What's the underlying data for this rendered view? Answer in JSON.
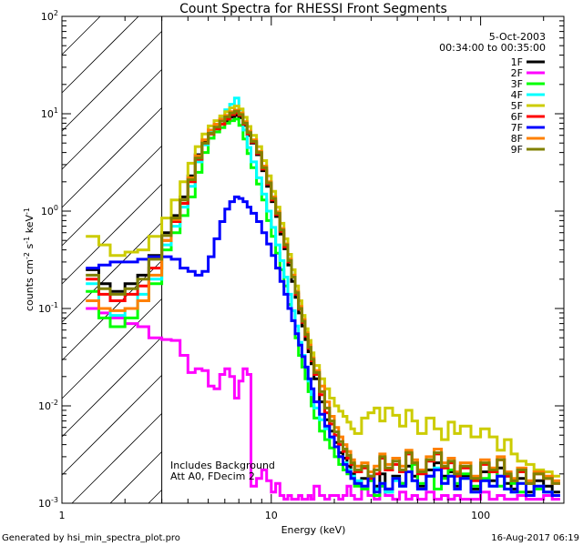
{
  "chart_data": {
    "type": "line",
    "title": "Count Spectra for RHESSI Front Segments",
    "xlabel": "Energy (keV)",
    "ylabel": "counts cm-2 s-1 keV-1",
    "ylabel_parts": {
      "base": "counts cm",
      "exp1": "-2",
      "mid1": " s",
      "exp2": "-1",
      "mid2": " keV",
      "exp3": "-1"
    },
    "x_scale": "log",
    "y_scale": "log",
    "xlim": [
      1,
      250
    ],
    "ylim": [
      0.001,
      100
    ],
    "x_ticks": [
      {
        "value": 1,
        "label": "1"
      },
      {
        "value": 10,
        "label": "10"
      },
      {
        "value": 100,
        "label": "100"
      }
    ],
    "y_ticks": [
      {
        "value": 100,
        "base": "10",
        "exp": "2"
      },
      {
        "value": 10,
        "base": "10",
        "exp": "1"
      },
      {
        "value": 1,
        "base": "10",
        "exp": "0"
      },
      {
        "value": 0.1,
        "base": "10",
        "exp": "-1"
      },
      {
        "value": 0.01,
        "base": "10",
        "exp": "-2"
      },
      {
        "value": 0.001,
        "base": "10",
        "exp": "-3"
      }
    ],
    "excluded_region_keV": [
      1,
      3
    ],
    "annotations": {
      "date": "5-Oct-2003",
      "time_range": "00:34:00 to 00:35:00",
      "note_line1": "Includes Background",
      "note_line2": "Att A0, FDecim 2"
    },
    "footer": {
      "left": "Generated by hsi_min_spectra_plot.pro",
      "right": "16-Aug-2017 06:19"
    },
    "bin_edges": [
      1.3,
      1.5,
      1.7,
      2.0,
      2.3,
      2.6,
      3.0,
      3.33,
      3.67,
      4.0,
      4.33,
      4.67,
      5.0,
      5.33,
      5.67,
      6.0,
      6.33,
      6.67,
      7.0,
      7.33,
      7.67,
      8.0,
      8.5,
      9.0,
      9.5,
      10.0,
      10.5,
      11.0,
      11.5,
      12.0,
      12.5,
      13.0,
      13.5,
      14.0,
      14.5,
      15.0,
      15.5,
      16.0,
      17.0,
      18.0,
      19.0,
      20.0,
      21.0,
      22.0,
      23.0,
      24.0,
      25.0,
      27.0,
      29.0,
      31.0,
      33.0,
      35.0,
      38.0,
      41.0,
      44.0,
      47.0,
      50.0,
      55.0,
      60.0,
      65.0,
      70.0,
      75.0,
      80.0,
      90.0,
      100.0,
      110.0,
      120.0,
      130.0,
      140.0,
      150.0,
      165.0,
      180.0,
      200.0,
      220.0,
      240.0
    ],
    "series": [
      {
        "name": "1F",
        "color": "#000000",
        "values": [
          0.25,
          0.18,
          0.15,
          0.18,
          0.22,
          0.35,
          0.6,
          0.9,
          1.4,
          2.3,
          3.8,
          5.2,
          6.3,
          7.0,
          7.8,
          8.3,
          9.2,
          9.6,
          9.1,
          7.6,
          6.0,
          5.0,
          3.8,
          2.6,
          1.8,
          1.25,
          0.88,
          0.58,
          0.41,
          0.28,
          0.19,
          0.13,
          0.09,
          0.066,
          0.048,
          0.036,
          0.027,
          0.019,
          0.011,
          0.0072,
          0.0055,
          0.0042,
          0.0033,
          0.0029,
          0.0024,
          0.002,
          0.0016,
          0.0018,
          0.0012,
          0.0015,
          0.002,
          0.0014,
          0.0019,
          0.0016,
          0.0024,
          0.0019,
          0.0015,
          0.0022,
          0.0026,
          0.0019,
          0.0021,
          0.0015,
          0.0019,
          0.0014,
          0.0021,
          0.0017,
          0.0023,
          0.0016,
          0.0014,
          0.0018,
          0.0013,
          0.0017,
          0.0015,
          0.0013
        ]
      },
      {
        "name": "2F",
        "color": "#ff00ff",
        "values": [
          0.1,
          0.09,
          0.08,
          0.07,
          0.065,
          0.05,
          0.048,
          0.047,
          0.033,
          0.022,
          0.024,
          0.023,
          0.016,
          0.015,
          0.021,
          0.024,
          0.02,
          0.012,
          0.018,
          0.024,
          0.021,
          0.0015,
          0.0018,
          0.0022,
          0.0017,
          0.0013,
          0.0016,
          0.0012,
          0.0011,
          0.0012,
          0.0011,
          0.0011,
          0.0012,
          0.0011,
          0.0011,
          0.0012,
          0.0011,
          0.0015,
          0.0012,
          0.0011,
          0.0012,
          0.0012,
          0.0011,
          0.0012,
          0.0015,
          0.0012,
          0.0011,
          0.0015,
          0.0012,
          0.0011,
          0.0015,
          0.0012,
          0.0011,
          0.0013,
          0.0011,
          0.0012,
          0.0011,
          0.0013,
          0.0011,
          0.0012,
          0.0011,
          0.0012,
          0.0011,
          0.0011,
          0.0013,
          0.0011,
          0.0012,
          0.0011,
          0.0011,
          0.0012,
          0.0011,
          0.0011,
          0.0012,
          0.0011
        ]
      },
      {
        "name": "3F",
        "color": "#00ff00",
        "values": [
          0.15,
          0.08,
          0.065,
          0.08,
          0.12,
          0.18,
          0.4,
          0.6,
          0.9,
          1.4,
          2.5,
          4.0,
          5.6,
          6.5,
          7.2,
          8.0,
          8.5,
          8.8,
          7.6,
          5.5,
          3.9,
          2.8,
          1.9,
          1.3,
          0.8,
          0.55,
          0.37,
          0.25,
          0.17,
          0.11,
          0.075,
          0.05,
          0.033,
          0.025,
          0.019,
          0.014,
          0.01,
          0.0075,
          0.0055,
          0.0045,
          0.0037,
          0.003,
          0.0025,
          0.0022,
          0.002,
          0.0018,
          0.0015,
          0.0014,
          0.0017,
          0.0012,
          0.0015,
          0.0013,
          0.0018,
          0.0016,
          0.0021,
          0.0025,
          0.0016,
          0.0019,
          0.0014,
          0.0018,
          0.0022,
          0.0016,
          0.002,
          0.0015,
          0.0018,
          0.0022,
          0.0015,
          0.0019,
          0.0016,
          0.0013,
          0.0016,
          0.0014,
          0.0013,
          0.0012
        ]
      },
      {
        "name": "4F",
        "color": "#00ffff",
        "values": [
          0.18,
          0.1,
          0.085,
          0.1,
          0.14,
          0.2,
          0.45,
          0.7,
          1.1,
          1.8,
          3.2,
          4.8,
          6.5,
          7.8,
          9.0,
          11.0,
          12.5,
          14.5,
          11.0,
          6.8,
          4.5,
          3.2,
          2.2,
          1.5,
          1.0,
          0.68,
          0.45,
          0.31,
          0.21,
          0.14,
          0.095,
          0.066,
          0.045,
          0.033,
          0.025,
          0.018,
          0.013,
          0.0095,
          0.0072,
          0.0058,
          0.0047,
          0.0038,
          0.003,
          0.0026,
          0.0022,
          0.0019,
          0.0017,
          0.0015,
          0.0019,
          0.0014,
          0.0016,
          0.0013,
          0.0017,
          0.0015,
          0.0021,
          0.0017,
          0.0014,
          0.0019,
          0.0023,
          0.0016,
          0.0019,
          0.0014,
          0.0018,
          0.0013,
          0.0017,
          0.0015,
          0.0019,
          0.0014,
          0.0013,
          0.0016,
          0.0012,
          0.0015,
          0.0013,
          0.0012
        ]
      },
      {
        "name": "5F",
        "color": "#cccc00",
        "values": [
          0.55,
          0.45,
          0.35,
          0.38,
          0.4,
          0.55,
          0.85,
          1.3,
          2.0,
          3.1,
          4.6,
          6.2,
          7.5,
          8.5,
          9.5,
          10.5,
          11.5,
          12.0,
          11.2,
          9.2,
          7.4,
          6.0,
          4.6,
          3.3,
          2.3,
          1.6,
          1.1,
          0.75,
          0.52,
          0.36,
          0.25,
          0.17,
          0.12,
          0.085,
          0.062,
          0.047,
          0.035,
          0.026,
          0.019,
          0.015,
          0.012,
          0.01,
          0.0088,
          0.0078,
          0.0068,
          0.0058,
          0.0052,
          0.0075,
          0.0085,
          0.0095,
          0.007,
          0.0095,
          0.008,
          0.0062,
          0.009,
          0.007,
          0.0052,
          0.0075,
          0.0058,
          0.0045,
          0.0068,
          0.0052,
          0.0062,
          0.0048,
          0.0058,
          0.0048,
          0.0035,
          0.0045,
          0.0032,
          0.0027,
          0.0025,
          0.0022,
          0.0021,
          0.0019
        ]
      },
      {
        "name": "6F",
        "color": "#ff0000",
        "values": [
          0.2,
          0.14,
          0.12,
          0.14,
          0.17,
          0.26,
          0.5,
          0.78,
          1.2,
          2.0,
          3.4,
          5.0,
          6.2,
          7.0,
          7.8,
          8.8,
          9.8,
          10.2,
          9.6,
          7.8,
          6.2,
          5.1,
          3.9,
          2.7,
          1.9,
          1.3,
          0.92,
          0.62,
          0.43,
          0.3,
          0.21,
          0.14,
          0.098,
          0.072,
          0.052,
          0.039,
          0.029,
          0.021,
          0.013,
          0.0085,
          0.0065,
          0.005,
          0.004,
          0.0034,
          0.0029,
          0.0025,
          0.0021,
          0.0023,
          0.0018,
          0.002,
          0.0029,
          0.0022,
          0.0025,
          0.0021,
          0.0032,
          0.0026,
          0.002,
          0.0027,
          0.0032,
          0.0023,
          0.0026,
          0.0019,
          0.0023,
          0.0017,
          0.0025,
          0.0021,
          0.0028,
          0.0019,
          0.0017,
          0.0021,
          0.0016,
          0.002,
          0.0018,
          0.0016
        ]
      },
      {
        "name": "7F",
        "color": "#0000ff",
        "values": [
          0.26,
          0.28,
          0.3,
          0.3,
          0.32,
          0.34,
          0.34,
          0.32,
          0.26,
          0.24,
          0.22,
          0.24,
          0.34,
          0.52,
          0.78,
          1.05,
          1.25,
          1.4,
          1.35,
          1.25,
          1.1,
          0.95,
          0.78,
          0.6,
          0.46,
          0.35,
          0.26,
          0.19,
          0.14,
          0.1,
          0.075,
          0.055,
          0.042,
          0.032,
          0.025,
          0.019,
          0.015,
          0.011,
          0.0082,
          0.0062,
          0.0048,
          0.0038,
          0.003,
          0.0025,
          0.0021,
          0.0018,
          0.0016,
          0.0015,
          0.0019,
          0.0013,
          0.0016,
          0.0014,
          0.0018,
          0.0015,
          0.0021,
          0.0017,
          0.0014,
          0.0019,
          0.0022,
          0.0016,
          0.0019,
          0.0014,
          0.0018,
          0.0013,
          0.0017,
          0.0015,
          0.0019,
          0.0014,
          0.0013,
          0.0016,
          0.0012,
          0.0015,
          0.0013,
          0.0012
        ]
      },
      {
        "name": "8F",
        "color": "#ff8000",
        "values": [
          0.12,
          0.1,
          0.095,
          0.1,
          0.12,
          0.22,
          0.5,
          0.82,
          1.3,
          2.2,
          3.7,
          5.4,
          6.8,
          7.8,
          8.8,
          9.6,
          10.5,
          10.9,
          10.2,
          8.3,
          6.6,
          5.4,
          4.1,
          2.9,
          2.0,
          1.4,
          0.98,
          0.66,
          0.46,
          0.32,
          0.22,
          0.15,
          0.105,
          0.077,
          0.056,
          0.042,
          0.031,
          0.023,
          0.016,
          0.011,
          0.0078,
          0.006,
          0.0048,
          0.004,
          0.0034,
          0.0028,
          0.0024,
          0.0026,
          0.0021,
          0.0024,
          0.0032,
          0.0025,
          0.0029,
          0.0024,
          0.0035,
          0.0028,
          0.0022,
          0.003,
          0.0036,
          0.0026,
          0.0029,
          0.0021,
          0.0026,
          0.0019,
          0.0028,
          0.0023,
          0.003,
          0.0021,
          0.0018,
          0.0023,
          0.0017,
          0.0021,
          0.0019,
          0.0017
        ]
      },
      {
        "name": "9F",
        "color": "#808000",
        "values": [
          0.22,
          0.16,
          0.14,
          0.16,
          0.2,
          0.32,
          0.56,
          0.85,
          1.3,
          2.1,
          3.5,
          5.0,
          6.3,
          7.3,
          8.4,
          9.3,
          10.2,
          10.6,
          9.8,
          8.0,
          6.4,
          5.2,
          4.0,
          2.8,
          1.95,
          1.35,
          0.95,
          0.64,
          0.45,
          0.31,
          0.21,
          0.145,
          0.1,
          0.074,
          0.054,
          0.04,
          0.03,
          0.022,
          0.014,
          0.0095,
          0.007,
          0.0054,
          0.0043,
          0.0036,
          0.0031,
          0.0026,
          0.0022,
          0.0024,
          0.0019,
          0.0022,
          0.003,
          0.0023,
          0.0027,
          0.0022,
          0.0033,
          0.0026,
          0.0021,
          0.0028,
          0.0033,
          0.0024,
          0.0027,
          0.002,
          0.0024,
          0.0018,
          0.0026,
          0.0022,
          0.0028,
          0.002,
          0.0017,
          0.0022,
          0.0016,
          0.002,
          0.0018,
          0.0016
        ]
      }
    ]
  }
}
